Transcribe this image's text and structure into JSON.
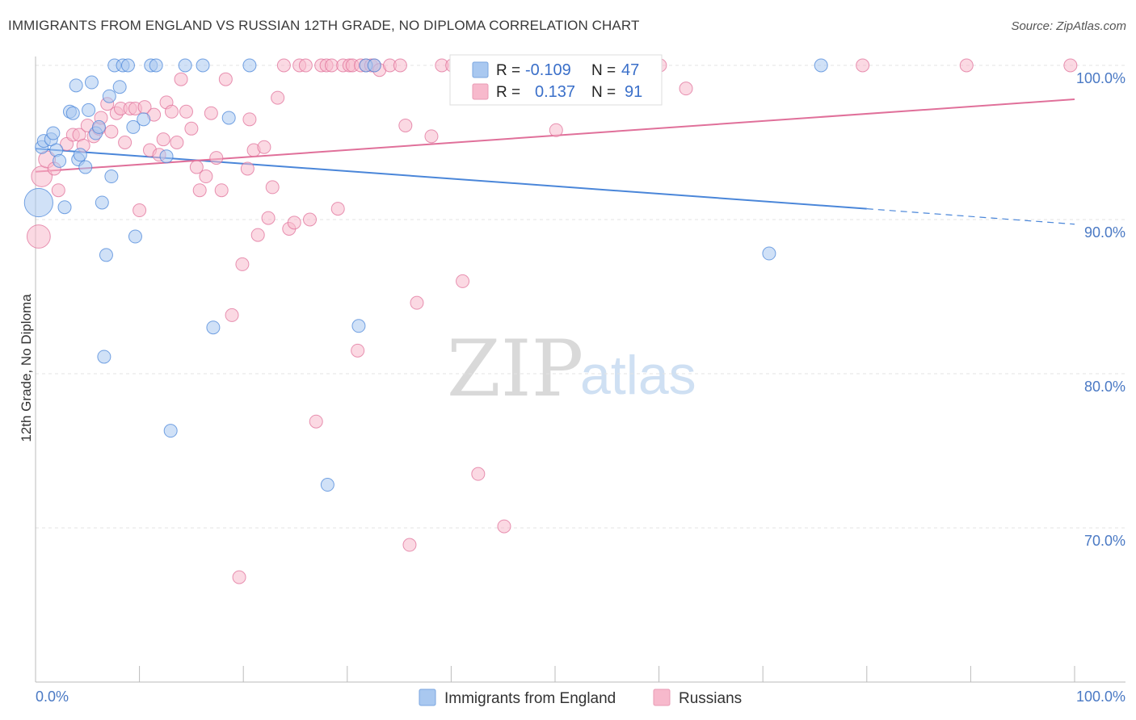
{
  "title": "IMMIGRANTS FROM ENGLAND VS RUSSIAN 12TH GRADE, NO DIPLOMA CORRELATION CHART",
  "source": "Source: ZipAtlas.com",
  "watermark": {
    "zip": "ZIP",
    "atlas": "atlas"
  },
  "legend": {
    "rows": [
      {
        "r_label": "R =",
        "r_value": "-0.109",
        "n_label": "N =",
        "n_value": "47",
        "color": "#a9c8f0"
      },
      {
        "r_label": "R =",
        "r_value": "0.137",
        "n_label": "N =",
        "n_value": "91",
        "color": "#f7b9cc"
      }
    ]
  },
  "bottom_legend": [
    {
      "label": "Immigrants from England",
      "color": "#a9c8f0"
    },
    {
      "label": "Russians",
      "color": "#f7b9cc"
    }
  ],
  "chart_data": {
    "type": "scatter",
    "title": "IMMIGRANTS FROM ENGLAND VS RUSSIAN 12TH GRADE, NO DIPLOMA CORRELATION CHART",
    "xlabel": "",
    "ylabel": "12th Grade, No Diploma",
    "xlim": [
      0,
      100
    ],
    "ylim": [
      61,
      101.5
    ],
    "x_tick_labels": [
      "0.0%",
      "100.0%"
    ],
    "y_ticks": [
      {
        "value": 100,
        "label": "100.0%"
      },
      {
        "value": 90,
        "label": "90.0%"
      },
      {
        "value": 80,
        "label": "80.0%"
      },
      {
        "value": 70,
        "label": "70.0%"
      }
    ],
    "grid": true,
    "legend_position": "top-center",
    "series": [
      {
        "name": "Immigrants from England",
        "color": "#4a86d9",
        "fill": "#a9c8f0",
        "trend": {
          "x0": 0,
          "y0": 94.6,
          "x1": 80,
          "y1": 90.7,
          "dash_to_x": 100,
          "dash_to_y": 89.7
        },
        "points": [
          [
            0.3,
            91.1,
            2.2
          ],
          [
            0.6,
            94.7,
            1
          ],
          [
            0.8,
            95.1,
            1
          ],
          [
            1.5,
            95.2,
            1
          ],
          [
            1.7,
            95.6,
            1
          ],
          [
            2.0,
            94.5,
            1
          ],
          [
            2.3,
            93.8,
            1
          ],
          [
            2.8,
            90.8,
            1
          ],
          [
            3.3,
            97.0,
            1
          ],
          [
            3.6,
            96.9,
            1
          ],
          [
            3.9,
            98.7,
            1
          ],
          [
            4.1,
            93.9,
            1
          ],
          [
            4.3,
            94.2,
            1
          ],
          [
            4.8,
            93.4,
            1
          ],
          [
            5.1,
            97.1,
            1
          ],
          [
            5.4,
            98.9,
            1
          ],
          [
            5.8,
            95.6,
            1
          ],
          [
            6.1,
            96.0,
            1
          ],
          [
            6.4,
            91.1,
            1
          ],
          [
            6.6,
            81.1,
            1
          ],
          [
            6.8,
            87.7,
            1
          ],
          [
            7.1,
            98.0,
            1
          ],
          [
            7.3,
            92.8,
            1
          ],
          [
            7.6,
            100,
            1
          ],
          [
            8.1,
            98.6,
            1
          ],
          [
            8.4,
            100,
            1
          ],
          [
            8.9,
            100,
            1
          ],
          [
            9.4,
            96.0,
            1
          ],
          [
            9.6,
            88.9,
            1
          ],
          [
            10.4,
            96.5,
            1
          ],
          [
            11.1,
            100,
            1
          ],
          [
            11.6,
            100,
            1
          ],
          [
            12.6,
            94.1,
            1
          ],
          [
            13.0,
            76.3,
            1
          ],
          [
            14.4,
            100,
            1
          ],
          [
            16.1,
            100,
            1
          ],
          [
            17.1,
            83.0,
            1
          ],
          [
            18.6,
            96.6,
            1
          ],
          [
            20.6,
            100,
            1
          ],
          [
            28.1,
            72.8,
            1
          ],
          [
            31.1,
            83.1,
            1
          ],
          [
            31.8,
            100,
            1
          ],
          [
            32.6,
            100,
            1
          ],
          [
            56.6,
            100,
            1
          ],
          [
            58.1,
            100,
            1
          ],
          [
            70.6,
            87.8,
            1
          ],
          [
            75.6,
            100,
            1
          ]
        ]
      },
      {
        "name": "Russians",
        "color": "#e0709a",
        "fill": "#f7b9cc",
        "trend": {
          "x0": 0,
          "y0": 93.1,
          "x1": 100,
          "y1": 97.8
        },
        "points": [
          [
            0.3,
            88.9,
            1.8
          ],
          [
            0.6,
            92.8,
            1.6
          ],
          [
            1.1,
            93.9,
            1.3
          ],
          [
            1.8,
            93.3,
            1
          ],
          [
            2.2,
            91.9,
            1
          ],
          [
            3.0,
            94.9,
            1
          ],
          [
            3.6,
            95.5,
            1
          ],
          [
            4.2,
            95.5,
            1
          ],
          [
            4.6,
            94.8,
            1
          ],
          [
            5.0,
            96.1,
            1
          ],
          [
            5.6,
            95.4,
            1
          ],
          [
            6.1,
            95.9,
            1
          ],
          [
            6.3,
            96.6,
            1
          ],
          [
            6.9,
            97.5,
            1
          ],
          [
            7.3,
            95.7,
            1
          ],
          [
            7.8,
            96.9,
            1
          ],
          [
            8.2,
            97.2,
            1
          ],
          [
            8.6,
            95.0,
            1
          ],
          [
            9.1,
            97.2,
            1
          ],
          [
            9.6,
            97.2,
            1
          ],
          [
            10.0,
            90.6,
            1
          ],
          [
            10.5,
            97.3,
            1
          ],
          [
            11.0,
            94.5,
            1
          ],
          [
            11.4,
            96.8,
            1
          ],
          [
            11.9,
            94.2,
            1
          ],
          [
            12.3,
            95.2,
            1
          ],
          [
            12.6,
            97.6,
            1
          ],
          [
            13.1,
            97.0,
            1
          ],
          [
            13.6,
            95.0,
            1
          ],
          [
            14.0,
            99.1,
            1
          ],
          [
            14.5,
            97.0,
            1
          ],
          [
            15.0,
            95.9,
            1
          ],
          [
            15.5,
            93.4,
            1
          ],
          [
            15.8,
            91.9,
            1
          ],
          [
            16.4,
            92.8,
            1
          ],
          [
            16.9,
            96.9,
            1
          ],
          [
            17.4,
            94.0,
            1
          ],
          [
            17.9,
            91.9,
            1
          ],
          [
            18.3,
            99.1,
            1
          ],
          [
            18.9,
            83.8,
            1
          ],
          [
            19.6,
            66.8,
            1
          ],
          [
            19.9,
            87.1,
            1
          ],
          [
            20.4,
            93.3,
            1
          ],
          [
            20.6,
            96.5,
            1
          ],
          [
            21.0,
            94.5,
            1
          ],
          [
            21.4,
            89.0,
            1
          ],
          [
            22.0,
            94.7,
            1
          ],
          [
            22.4,
            90.1,
            1
          ],
          [
            22.8,
            92.1,
            1
          ],
          [
            23.3,
            97.9,
            1
          ],
          [
            23.9,
            100,
            1
          ],
          [
            24.4,
            89.4,
            1
          ],
          [
            24.9,
            89.8,
            1
          ],
          [
            25.4,
            100,
            1
          ],
          [
            26.0,
            100,
            1
          ],
          [
            26.4,
            90.0,
            1
          ],
          [
            27.0,
            76.9,
            1
          ],
          [
            27.5,
            100,
            1
          ],
          [
            28.0,
            100,
            1
          ],
          [
            28.5,
            100,
            1
          ],
          [
            29.1,
            90.7,
            1
          ],
          [
            29.6,
            100,
            1
          ],
          [
            30.2,
            100,
            1
          ],
          [
            30.5,
            100,
            1
          ],
          [
            31.0,
            81.5,
            1
          ],
          [
            31.3,
            100,
            1
          ],
          [
            31.8,
            100,
            1
          ],
          [
            32.3,
            100,
            1
          ],
          [
            32.6,
            100,
            1
          ],
          [
            33.1,
            99.7,
            1
          ],
          [
            34.1,
            100,
            1
          ],
          [
            35.1,
            100,
            1
          ],
          [
            35.6,
            96.1,
            1
          ],
          [
            36.0,
            68.9,
            1
          ],
          [
            36.7,
            84.6,
            1
          ],
          [
            38.1,
            95.4,
            1
          ],
          [
            39.1,
            100,
            1
          ],
          [
            40.1,
            100,
            1
          ],
          [
            41.1,
            86.0,
            1
          ],
          [
            42.6,
            73.5,
            1
          ],
          [
            44.1,
            100,
            1
          ],
          [
            45.1,
            70.1,
            1
          ],
          [
            48.1,
            100,
            1
          ],
          [
            50.1,
            95.8,
            1
          ],
          [
            53.1,
            100,
            1
          ],
          [
            55.1,
            100,
            1
          ],
          [
            60.1,
            100,
            1
          ],
          [
            62.6,
            98.5,
            1
          ],
          [
            79.6,
            100,
            1
          ],
          [
            89.6,
            100,
            1
          ],
          [
            99.6,
            100,
            1
          ]
        ]
      }
    ]
  }
}
